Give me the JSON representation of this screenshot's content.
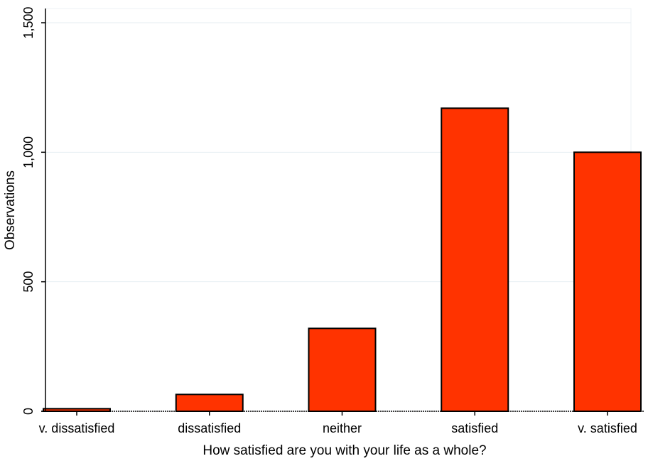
{
  "chart_data": {
    "type": "bar",
    "categories": [
      "v. dissatisfied",
      "dissatisfied",
      "neither",
      "satisfied",
      "v. satisfied"
    ],
    "values": [
      10,
      65,
      320,
      1170,
      1000
    ],
    "title": "",
    "xlabel": "How satisfied are you with your life as a whole?",
    "ylabel": "Observations",
    "ylim": [
      0,
      1500
    ],
    "yticks": [
      0,
      500,
      1000,
      1500
    ],
    "ytick_labels": [
      "0",
      "500",
      "1,000",
      "1,500"
    ],
    "grid": true,
    "bar_color": "#ff3300",
    "bar_edge_color": "#000000"
  }
}
